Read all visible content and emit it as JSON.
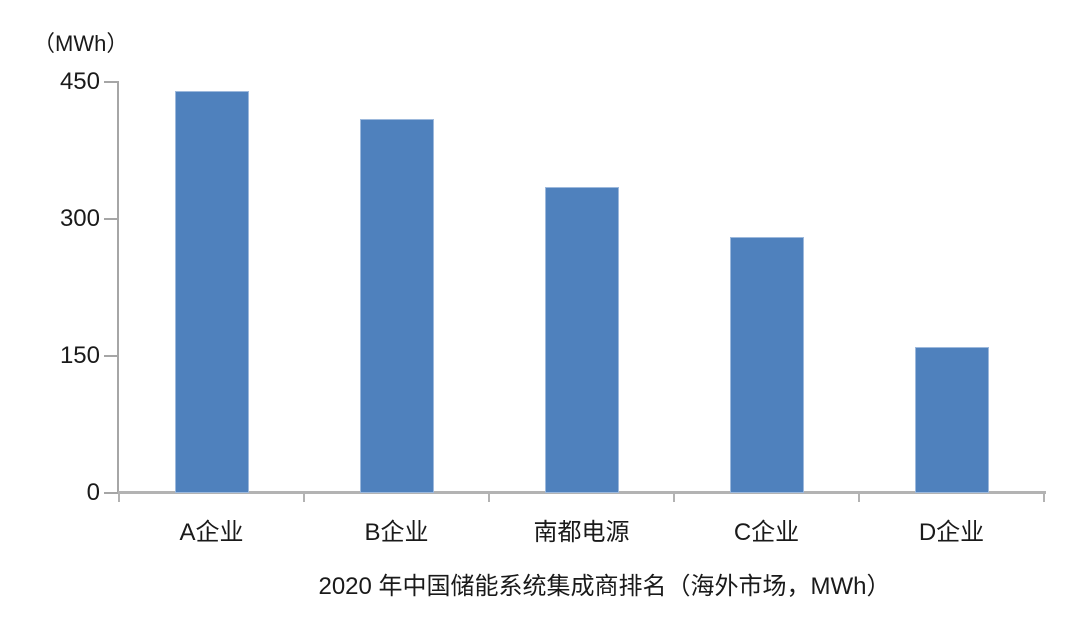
{
  "chart_data": {
    "type": "bar",
    "categories": [
      "A企业",
      "B企业",
      "南都电源",
      "C企业",
      "D企业"
    ],
    "values": [
      440,
      410,
      335,
      280,
      160
    ],
    "title": "2020 年中国储能系统集成商排名（海外市场，MWh）",
    "unit_label": "（MWh）",
    "xlabel": "",
    "ylabel": "（MWh）",
    "yticks": [
      0,
      150,
      300,
      450
    ],
    "ylim": [
      0,
      450
    ],
    "grid": false,
    "legend": false,
    "colors": {
      "bar_fill": "#4F81BD",
      "bar_border": "#9DB9DC",
      "axis": "#A6A6A6",
      "baseline": "#B3B3B3",
      "text": "#1A1A1A",
      "background": "#FFFFFF"
    }
  }
}
